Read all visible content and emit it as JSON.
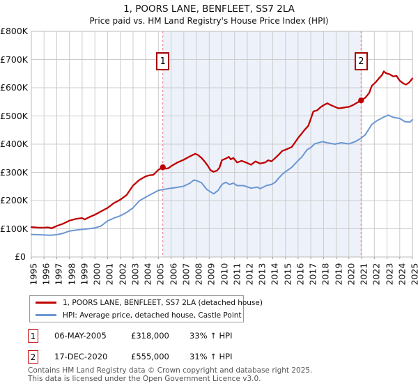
{
  "title": "1, POORS LANE, BENFLEET, SS7 2LA",
  "subtitle": "Price paid vs. HM Land Registry's House Price Index (HPI)",
  "chart_data": {
    "type": "line",
    "xlim": [
      1995,
      2025
    ],
    "ylim": [
      0,
      800
    ],
    "y_unit": "GBP thousands",
    "grid": true,
    "x_ticks": [
      1995,
      1996,
      1997,
      1998,
      1999,
      2000,
      2001,
      2002,
      2003,
      2004,
      2005,
      2006,
      2007,
      2008,
      2009,
      2010,
      2011,
      2012,
      2013,
      2014,
      2015,
      2016,
      2017,
      2018,
      2019,
      2020,
      2021,
      2022,
      2023,
      2024,
      2025
    ],
    "y_tick_labels": [
      "£0",
      "£100K",
      "£200K",
      "£300K",
      "£400K",
      "£500K",
      "£600K",
      "£700K",
      "£800K"
    ],
    "shaded_region": {
      "from": 2005.35,
      "to": 2020.96,
      "color": "#edf1fa"
    },
    "markers": [
      {
        "label": "1",
        "x": 2005.35,
        "value": 318
      },
      {
        "label": "2",
        "x": 2020.96,
        "value": 555
      }
    ],
    "series": [
      {
        "name": "1, POORS LANE, BENFLEET, SS7 2LA (detached house)",
        "color": "#c00000",
        "points": [
          [
            1995.0,
            106
          ],
          [
            1995.3,
            105
          ],
          [
            1995.6,
            104
          ],
          [
            1996.0,
            104
          ],
          [
            1996.3,
            105
          ],
          [
            1996.6,
            102
          ],
          [
            1997.0,
            110
          ],
          [
            1997.5,
            118
          ],
          [
            1998.0,
            129
          ],
          [
            1998.5,
            135
          ],
          [
            1999.0,
            138
          ],
          [
            1999.2,
            133
          ],
          [
            1999.5,
            140
          ],
          [
            2000.0,
            150
          ],
          [
            2000.5,
            162
          ],
          [
            2001.0,
            174
          ],
          [
            2001.5,
            191
          ],
          [
            2002.0,
            203
          ],
          [
            2002.5,
            220
          ],
          [
            2003.0,
            253
          ],
          [
            2003.5,
            273
          ],
          [
            2004.0,
            286
          ],
          [
            2004.3,
            290
          ],
          [
            2004.6,
            291
          ],
          [
            2005.0,
            309
          ],
          [
            2005.35,
            318
          ],
          [
            2005.6,
            313
          ],
          [
            2005.8,
            315
          ],
          [
            2006.0,
            322
          ],
          [
            2006.5,
            335
          ],
          [
            2007.0,
            345
          ],
          [
            2007.5,
            357
          ],
          [
            2007.9,
            366
          ],
          [
            2008.1,
            362
          ],
          [
            2008.4,
            351
          ],
          [
            2008.7,
            335
          ],
          [
            2008.9,
            323
          ],
          [
            2009.1,
            308
          ],
          [
            2009.35,
            302
          ],
          [
            2009.6,
            306
          ],
          [
            2009.8,
            316
          ],
          [
            2010.0,
            343
          ],
          [
            2010.3,
            349
          ],
          [
            2010.55,
            355
          ],
          [
            2010.7,
            346
          ],
          [
            2010.9,
            351
          ],
          [
            2011.2,
            335
          ],
          [
            2011.55,
            341
          ],
          [
            2011.9,
            335
          ],
          [
            2012.3,
            327
          ],
          [
            2012.65,
            339
          ],
          [
            2013.0,
            331
          ],
          [
            2013.4,
            335
          ],
          [
            2013.65,
            343
          ],
          [
            2013.9,
            339
          ],
          [
            2014.2,
            351
          ],
          [
            2014.5,
            364
          ],
          [
            2014.75,
            376
          ],
          [
            2015.0,
            380
          ],
          [
            2015.5,
            390
          ],
          [
            2016.0,
            422
          ],
          [
            2016.5,
            450
          ],
          [
            2016.8,
            465
          ],
          [
            2017.0,
            490
          ],
          [
            2017.2,
            516
          ],
          [
            2017.5,
            520
          ],
          [
            2017.8,
            532
          ],
          [
            2018.0,
            538
          ],
          [
            2018.3,
            545
          ],
          [
            2018.6,
            538
          ],
          [
            2018.9,
            532
          ],
          [
            2019.2,
            527
          ],
          [
            2019.5,
            529
          ],
          [
            2019.8,
            531
          ],
          [
            2020.0,
            532
          ],
          [
            2020.3,
            538
          ],
          [
            2020.6,
            546
          ],
          [
            2020.96,
            555
          ],
          [
            2021.3,
            565
          ],
          [
            2021.6,
            582
          ],
          [
            2021.8,
            607
          ],
          [
            2022.1,
            619
          ],
          [
            2022.4,
            635
          ],
          [
            2022.6,
            645
          ],
          [
            2022.75,
            658
          ],
          [
            2022.9,
            652
          ],
          [
            2023.2,
            648
          ],
          [
            2023.5,
            640
          ],
          [
            2023.75,
            642
          ],
          [
            2024.0,
            625
          ],
          [
            2024.3,
            615
          ],
          [
            2024.5,
            611
          ],
          [
            2024.75,
            619
          ],
          [
            2025.0,
            633
          ]
        ]
      },
      {
        "name": "HPI: Average price, detached house, Castle Point",
        "color": "#6b96d2",
        "points": [
          [
            1995.0,
            80
          ],
          [
            1995.5,
            79
          ],
          [
            1996.0,
            78
          ],
          [
            1996.5,
            77
          ],
          [
            1997.0,
            79
          ],
          [
            1997.5,
            84
          ],
          [
            1998.0,
            92
          ],
          [
            1998.5,
            95
          ],
          [
            1999.0,
            98
          ],
          [
            1999.5,
            100
          ],
          [
            2000.0,
            103
          ],
          [
            2000.5,
            110
          ],
          [
            2001.0,
            128
          ],
          [
            2001.5,
            138
          ],
          [
            2002.0,
            146
          ],
          [
            2002.5,
            158
          ],
          [
            2003.0,
            174
          ],
          [
            2003.5,
            199
          ],
          [
            2004.0,
            212
          ],
          [
            2004.5,
            224
          ],
          [
            2005.0,
            236
          ],
          [
            2005.35,
            239
          ],
          [
            2006.0,
            244
          ],
          [
            2006.5,
            247
          ],
          [
            2007.0,
            251
          ],
          [
            2007.5,
            262
          ],
          [
            2007.8,
            273
          ],
          [
            2008.1,
            269
          ],
          [
            2008.4,
            263
          ],
          [
            2008.8,
            240
          ],
          [
            2009.35,
            224
          ],
          [
            2009.7,
            236
          ],
          [
            2010.0,
            257
          ],
          [
            2010.3,
            265
          ],
          [
            2010.6,
            257
          ],
          [
            2010.9,
            262
          ],
          [
            2011.2,
            253
          ],
          [
            2011.7,
            253
          ],
          [
            2012.3,
            244
          ],
          [
            2012.8,
            248
          ],
          [
            2013.0,
            242
          ],
          [
            2013.5,
            253
          ],
          [
            2013.9,
            257
          ],
          [
            2014.2,
            265
          ],
          [
            2014.5,
            281
          ],
          [
            2014.75,
            293
          ],
          [
            2015.0,
            302
          ],
          [
            2015.5,
            318
          ],
          [
            2016.0,
            342
          ],
          [
            2016.3,
            355
          ],
          [
            2016.7,
            380
          ],
          [
            2017.0,
            388
          ],
          [
            2017.3,
            401
          ],
          [
            2017.9,
            409
          ],
          [
            2018.3,
            405
          ],
          [
            2018.9,
            400
          ],
          [
            2019.4,
            405
          ],
          [
            2020.0,
            401
          ],
          [
            2020.5,
            409
          ],
          [
            2020.96,
            421
          ],
          [
            2021.3,
            434
          ],
          [
            2021.8,
            470
          ],
          [
            2022.2,
            483
          ],
          [
            2022.7,
            495
          ],
          [
            2023.1,
            503
          ],
          [
            2023.5,
            495
          ],
          [
            2024.0,
            491
          ],
          [
            2024.4,
            480
          ],
          [
            2024.8,
            478
          ],
          [
            2025.0,
            487
          ]
        ]
      }
    ],
    "colors": {
      "grid": "#cccccc",
      "plot_border": "#bbbbbb",
      "event_line": "#ef8a8a",
      "marker_dot": "#c00000",
      "marker_box_border": "#a50000",
      "shaded_band": "#edf1fa"
    }
  },
  "legend": {
    "items": [
      {
        "label": "1, POORS LANE, BENFLEET, SS7 2LA (detached house)",
        "color": "#c00000"
      },
      {
        "label": "HPI: Average price, detached house, Castle Point",
        "color": "#6b96d2"
      }
    ]
  },
  "sales": [
    {
      "num": "1",
      "date": "06-MAY-2005",
      "price": "£318,000",
      "hpi": "33% ↑ HPI"
    },
    {
      "num": "2",
      "date": "17-DEC-2020",
      "price": "£555,000",
      "hpi": "31% ↑ HPI"
    }
  ],
  "footer": {
    "line1": "Contains HM Land Registry data © Crown copyright and database right 2025.",
    "line2": "This data is licensed under the Open Government Licence v3.0."
  }
}
